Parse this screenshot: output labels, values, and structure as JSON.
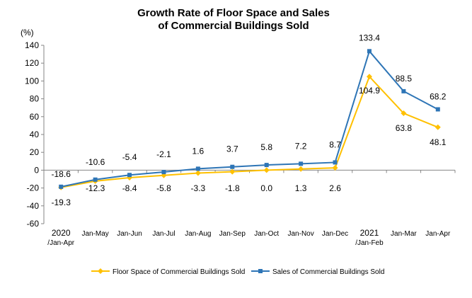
{
  "chart_data": {
    "type": "line",
    "title": [
      "Growth Rate of Floor Space and Sales",
      "of Commercial Buildings Sold"
    ],
    "unit": "(%)",
    "categories": [
      [
        "2020",
        "/Jan-Apr"
      ],
      [
        "Jan-May"
      ],
      [
        "Jan-Jun"
      ],
      [
        "Jan-Jul"
      ],
      [
        "Jan-Aug"
      ],
      [
        "Jan-Sep"
      ],
      [
        "Jan-Oct"
      ],
      [
        "Jan-Nov"
      ],
      [
        "Jan-Dec"
      ],
      [
        "2021",
        "/Jan-Feb"
      ],
      [
        "Jan-Mar"
      ],
      [
        "Jan-Apr"
      ]
    ],
    "ylim": [
      -60,
      140
    ],
    "yticks": [
      -60,
      -40,
      -20,
      0,
      20,
      40,
      60,
      80,
      100,
      120,
      140
    ],
    "ytick_labels": [
      "-60",
      "-40",
      "-20",
      "0",
      "20",
      "40",
      "60",
      "80",
      "100",
      "120",
      "140"
    ],
    "grid": false,
    "legend_position": "bottom",
    "series": [
      {
        "name": "Floor Space of Commercial Buildings Sold",
        "color": "#FFC000",
        "marker": "diamond",
        "values": [
          -19.3,
          -12.3,
          -8.4,
          -5.8,
          -3.3,
          -1.8,
          0.0,
          1.3,
          2.6,
          104.9,
          63.8,
          48.1
        ],
        "labels": [
          "-19.3",
          "-12.3",
          "-8.4",
          "-5.8",
          "-3.3",
          "-1.8",
          "0.0",
          "1.3",
          "2.6",
          "104.9",
          "63.8",
          "48.1"
        ]
      },
      {
        "name": "Sales of Commercial Buildings Sold",
        "color": "#2E75B6",
        "marker": "square",
        "values": [
          -18.6,
          -10.6,
          -5.4,
          -2.1,
          1.6,
          3.7,
          5.8,
          7.2,
          8.7,
          133.4,
          88.5,
          68.2
        ],
        "labels": [
          "-18.6",
          "-10.6",
          "-5.4",
          "-2.1",
          "1.6",
          "3.7",
          "5.8",
          "7.2",
          "8.7",
          "133.4",
          "88.5",
          "68.2"
        ]
      }
    ]
  }
}
